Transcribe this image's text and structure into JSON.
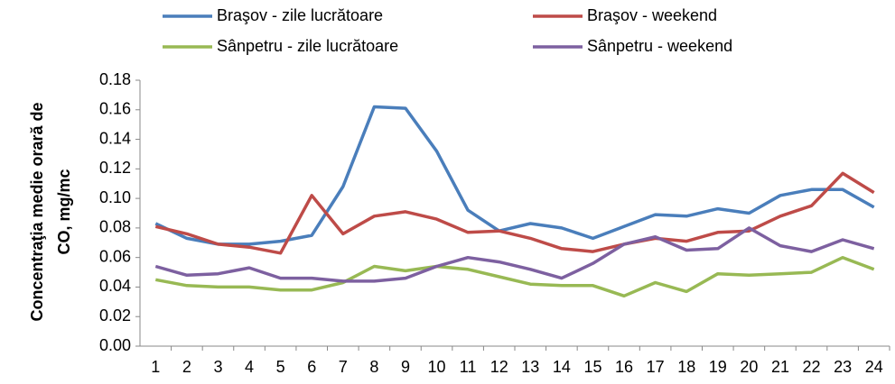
{
  "chart_data": {
    "type": "line",
    "ylabel": [
      "Concentraţia medie orară de",
      "CO, mg/mc"
    ],
    "categories": [
      "1",
      "2",
      "3",
      "4",
      "5",
      "6",
      "7",
      "8",
      "9",
      "10",
      "11",
      "12",
      "13",
      "14",
      "15",
      "16",
      "17",
      "18",
      "19",
      "20",
      "21",
      "22",
      "23",
      "24"
    ],
    "series": [
      {
        "name": "Braşov - zile lucrătoare",
        "color": "#4a7ebb",
        "values": [
          0.083,
          0.073,
          0.069,
          0.069,
          0.071,
          0.075,
          0.108,
          0.162,
          0.161,
          0.132,
          0.092,
          0.078,
          0.083,
          0.08,
          0.073,
          0.081,
          0.089,
          0.088,
          0.093,
          0.09,
          0.102,
          0.106,
          0.106,
          0.094
        ]
      },
      {
        "name": "Braşov - weekend",
        "color": "#be4b48",
        "values": [
          0.081,
          0.076,
          0.069,
          0.067,
          0.063,
          0.102,
          0.076,
          0.088,
          0.091,
          0.086,
          0.077,
          0.078,
          0.073,
          0.066,
          0.064,
          0.069,
          0.073,
          0.071,
          0.077,
          0.078,
          0.088,
          0.095,
          0.117,
          0.104
        ]
      },
      {
        "name": "Sânpetru - zile lucrătoare",
        "color": "#98b954",
        "values": [
          0.045,
          0.041,
          0.04,
          0.04,
          0.038,
          0.038,
          0.043,
          0.054,
          0.051,
          0.054,
          0.052,
          0.047,
          0.042,
          0.041,
          0.041,
          0.034,
          0.043,
          0.037,
          0.049,
          0.048,
          0.049,
          0.05,
          0.06,
          0.052
        ]
      },
      {
        "name": "Sânpetru - weekend",
        "color": "#7d60a0",
        "values": [
          0.054,
          0.048,
          0.049,
          0.053,
          0.046,
          0.046,
          0.044,
          0.044,
          0.046,
          0.054,
          0.06,
          0.057,
          0.052,
          0.046,
          0.056,
          0.069,
          0.074,
          0.065,
          0.066,
          0.08,
          0.068,
          0.064,
          0.072,
          0.066
        ]
      }
    ],
    "ylim": [
      0,
      0.18
    ],
    "yticks": [
      {
        "value": 0,
        "label": "0.00"
      },
      {
        "value": 0.02,
        "label": "0.02"
      },
      {
        "value": 0.04,
        "label": "0.04"
      },
      {
        "value": 0.06,
        "label": "0.06"
      },
      {
        "value": 0.08,
        "label": "0.08"
      },
      {
        "value": 0.1,
        "label": "0.10"
      },
      {
        "value": 0.12,
        "label": "0.12"
      },
      {
        "value": 0.14,
        "label": "0.14"
      },
      {
        "value": 0.16,
        "label": "0.16"
      },
      {
        "value": 0.18,
        "label": "0.18"
      }
    ],
    "grid": false
  }
}
